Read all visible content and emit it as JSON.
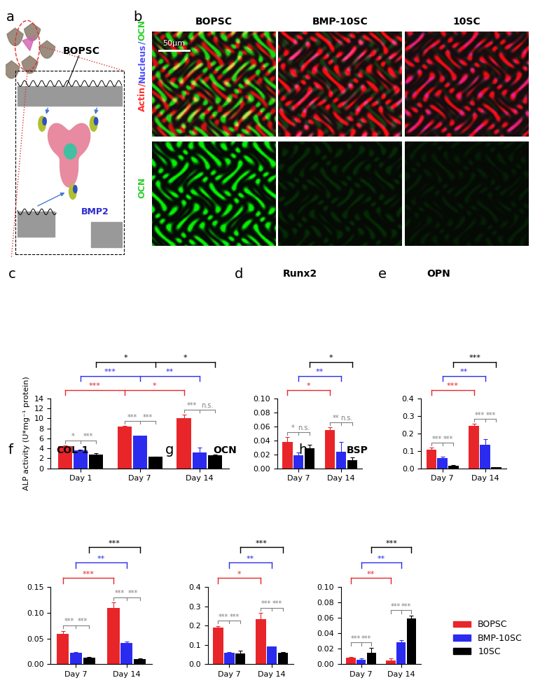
{
  "panel_a": {
    "panel_label": "a",
    "labels": [
      "BOPSC",
      "BMP2"
    ]
  },
  "panel_b": {
    "panel_label": "b",
    "column_titles": [
      "BOPSC",
      "BMP-10SC",
      "10SC"
    ],
    "row_labels": [
      [
        {
          "text": "Actin",
          "color": "#ff3030"
        },
        {
          "text": "/",
          "color": "#ff3030"
        },
        {
          "text": "Nucleus",
          "color": "#5050ff"
        },
        {
          "text": "/",
          "color": "#5050ff"
        },
        {
          "text": "OCN",
          "color": "#30d030"
        }
      ],
      [
        {
          "text": "OCN",
          "color": "#30d030"
        }
      ]
    ],
    "scale_bar": "50μm"
  },
  "chart_data": [
    {
      "type": "bar",
      "panel_label": "c",
      "y_label": "ALP activity (U*mg⁻¹ protein)",
      "categories": [
        "Day 1",
        "Day 7",
        "Day 14"
      ],
      "series": [
        {
          "name": "BOPSC",
          "color": "#e8262a",
          "values": [
            4.4,
            8.3,
            10.0
          ],
          "errors": [
            0.2,
            0.2,
            0.8
          ]
        },
        {
          "name": "BMP-10SC",
          "color": "#2b2bf0",
          "values": [
            3.6,
            6.5,
            3.2
          ],
          "errors": [
            0.2,
            0.1,
            1.0
          ]
        },
        {
          "name": "10SC",
          "color": "#000000",
          "values": [
            2.8,
            2.3,
            2.6
          ],
          "errors": [
            0.2,
            0.1,
            0.1
          ]
        }
      ],
      "ylim": [
        0,
        14
      ],
      "yticks": [
        0,
        2,
        4,
        6,
        8,
        10,
        12,
        14
      ],
      "significance": {
        "within": [
          [
            "*",
            "***"
          ],
          [
            "***",
            "***"
          ],
          [
            "***",
            "n.s."
          ]
        ],
        "across": [
          {
            "series": "BOPSC",
            "labels": [
              "***",
              "*"
            ]
          },
          {
            "series": "BMP-10SC",
            "labels": [
              "***",
              "**"
            ]
          },
          {
            "series": "10SC",
            "labels": [
              "*",
              "*"
            ]
          }
        ]
      }
    },
    {
      "type": "bar",
      "panel_label": "d",
      "title": "Runx2",
      "categories": [
        "Day 7",
        "Day 14"
      ],
      "series": [
        {
          "name": "BOPSC",
          "color": "#e8262a",
          "values": [
            0.038,
            0.055
          ],
          "errors": [
            0.007,
            0.004
          ]
        },
        {
          "name": "BMP-10SC",
          "color": "#2b2bf0",
          "values": [
            0.019,
            0.024
          ],
          "errors": [
            0.004,
            0.014
          ]
        },
        {
          "name": "10SC",
          "color": "#000000",
          "values": [
            0.029,
            0.012
          ],
          "errors": [
            0.005,
            0.004
          ]
        }
      ],
      "ylim": [
        0,
        0.1
      ],
      "yticks": [
        {
          "value": 0,
          "label": "0.00"
        },
        {
          "value": 0.02,
          "label": "0.02"
        },
        {
          "value": 0.04,
          "label": "0.04"
        },
        {
          "value": 0.06,
          "label": "0.06"
        },
        {
          "value": 0.08,
          "label": "0.08"
        },
        {
          "value": 0.1,
          "label": "0.10"
        }
      ],
      "significance": {
        "within": [
          [
            "*",
            "n.s."
          ],
          [
            "**",
            "n.s."
          ]
        ],
        "across": [
          {
            "series": "BOPSC",
            "labels": [
              "*"
            ]
          },
          {
            "series": "BMP-10SC",
            "labels": [
              "**"
            ]
          },
          {
            "series": "10SC",
            "labels": [
              "*"
            ]
          }
        ]
      }
    },
    {
      "type": "bar",
      "panel_label": "e",
      "title": "OPN",
      "categories": [
        "Day 7",
        "Day 14"
      ],
      "series": [
        {
          "name": "BOPSC",
          "color": "#e8262a",
          "values": [
            0.105,
            0.245
          ],
          "errors": [
            0.012,
            0.01
          ]
        },
        {
          "name": "BMP-10SC",
          "color": "#2b2bf0",
          "values": [
            0.058,
            0.135
          ],
          "errors": [
            0.008,
            0.03
          ]
        },
        {
          "name": "10SC",
          "color": "#000000",
          "values": [
            0.015,
            0.005
          ],
          "errors": [
            0.002,
            0.002
          ]
        }
      ],
      "ylim": [
        0.0,
        0.4
      ],
      "yticks": [
        0.0,
        0.1,
        0.2,
        0.3,
        0.4
      ],
      "significance": {
        "within": [
          [
            "***",
            "***"
          ],
          [
            "***",
            "***"
          ]
        ],
        "across": [
          {
            "series": "BOPSC",
            "labels": [
              "***"
            ]
          },
          {
            "series": "BMP-10SC",
            "labels": [
              "**"
            ]
          },
          {
            "series": "10SC",
            "labels": [
              "***"
            ]
          }
        ]
      }
    },
    {
      "type": "bar",
      "panel_label": "f",
      "title": "COL-1",
      "categories": [
        "Day 7",
        "Day 14"
      ],
      "series": [
        {
          "name": "BOPSC",
          "color": "#e8262a",
          "values": [
            0.059,
            0.11
          ],
          "errors": [
            0.006,
            0.01
          ]
        },
        {
          "name": "BMP-10SC",
          "color": "#2b2bf0",
          "values": [
            0.022,
            0.041
          ],
          "errors": [
            0.001,
            0.003
          ]
        },
        {
          "name": "10SC",
          "color": "#000000",
          "values": [
            0.013,
            0.01
          ],
          "errors": [
            0.001,
            0.001
          ]
        }
      ],
      "ylim": [
        0,
        0.15
      ],
      "yticks": [
        {
          "value": 0,
          "label": "0.00"
        },
        {
          "value": 0.05,
          "label": "0.05"
        },
        {
          "value": 0.1,
          "label": "0.10"
        },
        {
          "value": 0.15,
          "label": "0.15"
        }
      ],
      "significance": {
        "within": [
          [
            "***",
            "***"
          ],
          [
            "***",
            "***"
          ]
        ],
        "across": [
          {
            "series": "BOPSC",
            "labels": [
              "***"
            ]
          },
          {
            "series": "BMP-10SC",
            "labels": [
              "**"
            ]
          },
          {
            "series": "10SC",
            "labels": [
              "***"
            ]
          }
        ]
      }
    },
    {
      "type": "bar",
      "panel_label": "g",
      "title": "OCN",
      "categories": [
        "Day 7",
        "Day 14"
      ],
      "series": [
        {
          "name": "BOPSC",
          "color": "#e8262a",
          "values": [
            0.19,
            0.235
          ],
          "errors": [
            0.008,
            0.03
          ]
        },
        {
          "name": "BMP-10SC",
          "color": "#2b2bf0",
          "values": [
            0.06,
            0.09
          ],
          "errors": [
            0.003,
            0.002
          ]
        },
        {
          "name": "10SC",
          "color": "#000000",
          "values": [
            0.055,
            0.06
          ],
          "errors": [
            0.015,
            0.002
          ]
        }
      ],
      "ylim": [
        0.0,
        0.4
      ],
      "yticks": [
        0.0,
        0.1,
        0.2,
        0.3,
        0.4
      ],
      "significance": {
        "within": [
          [
            "***",
            "***"
          ],
          [
            "***",
            "***"
          ]
        ],
        "across": [
          {
            "series": "BOPSC",
            "labels": [
              "*"
            ]
          },
          {
            "series": "BMP-10SC",
            "labels": [
              "**"
            ]
          },
          {
            "series": "10SC",
            "labels": [
              "***"
            ]
          }
        ]
      }
    },
    {
      "type": "bar",
      "panel_label": "h",
      "title": "BSP",
      "categories": [
        "Day 7",
        "Day 14"
      ],
      "series": [
        {
          "name": "BOPSC",
          "color": "#e8262a",
          "values": [
            0.008,
            0.005
          ],
          "errors": [
            0.001,
            0.002
          ]
        },
        {
          "name": "BMP-10SC",
          "color": "#2b2bf0",
          "values": [
            0.006,
            0.028
          ],
          "errors": [
            0.001,
            0.003
          ]
        },
        {
          "name": "10SC",
          "color": "#000000",
          "values": [
            0.015,
            0.059
          ],
          "errors": [
            0.006,
            0.004
          ]
        }
      ],
      "ylim": [
        0,
        0.1
      ],
      "yticks": [
        {
          "value": 0,
          "label": "0.00"
        },
        {
          "value": 0.02,
          "label": "0.02"
        },
        {
          "value": 0.04,
          "label": "0.04"
        },
        {
          "value": 0.06,
          "label": "0.06"
        },
        {
          "value": 0.08,
          "label": "0.08"
        },
        {
          "value": 0.1,
          "label": "0.10"
        }
      ],
      "legend": "lower right",
      "significance": {
        "within": [
          [
            "***",
            "***"
          ],
          [
            "***",
            "***"
          ]
        ],
        "across": [
          {
            "series": "BOPSC",
            "labels": [
              "**"
            ]
          },
          {
            "series": "BMP-10SC",
            "labels": [
              "**"
            ]
          },
          {
            "series": "10SC",
            "labels": [
              "***"
            ]
          }
        ]
      }
    }
  ]
}
